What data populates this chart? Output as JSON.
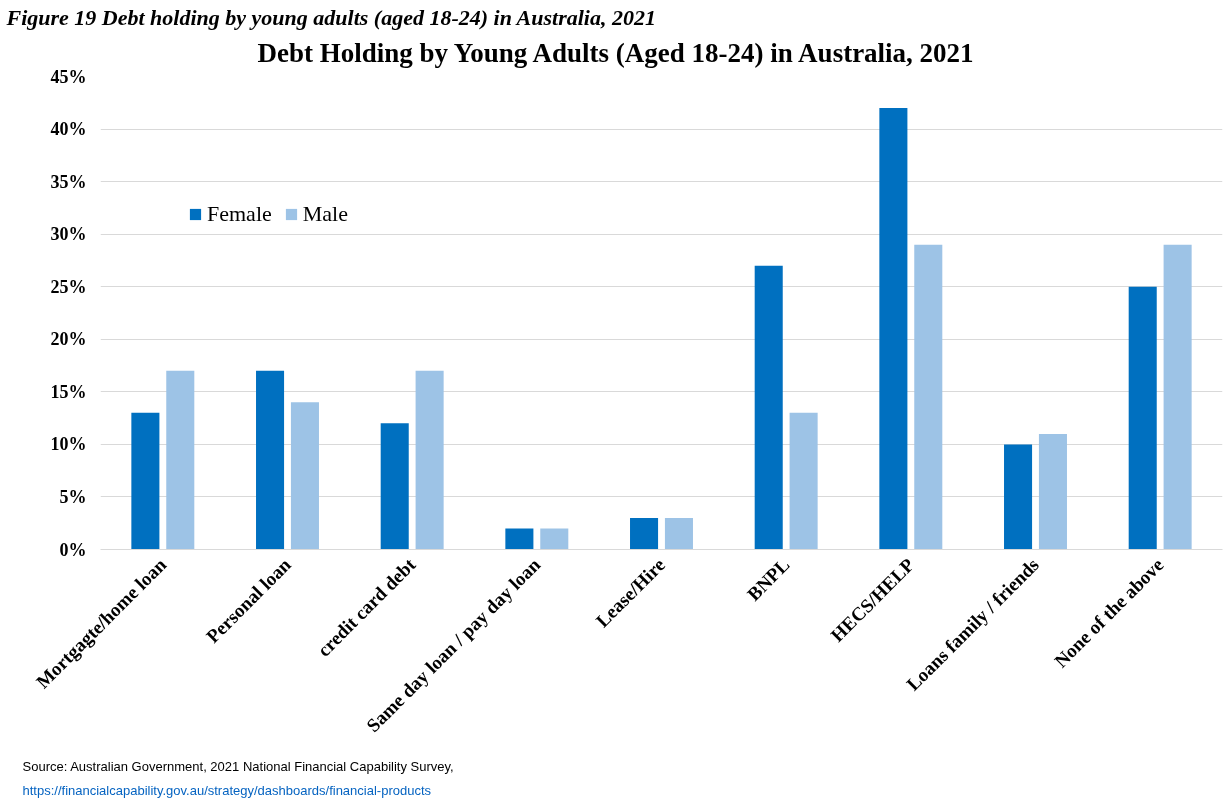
{
  "chart_data": {
    "type": "bar",
    "title": "Debt Holding by Young Adults (Aged 18-24) in Australia, 2021",
    "categories": [
      "Mortgagte/home loan",
      "Personal loan",
      "credit card debt",
      "Same day loan / pay day loan",
      "Lease/Hire",
      "BNPL",
      "HECS/HELP",
      "Loans family / friends",
      "None of the above"
    ],
    "series": [
      {
        "name": "Female",
        "color": "#0070c0",
        "values": [
          13,
          17,
          12,
          2,
          3,
          27,
          42,
          10,
          25
        ]
      },
      {
        "name": "Male",
        "color": "#9dc3e6",
        "values": [
          17,
          14,
          17,
          2,
          3,
          13,
          29,
          11,
          29
        ]
      }
    ],
    "ylim": [
      0,
      45
    ],
    "yticks": [
      {
        "value": 0,
        "label": "0%"
      },
      {
        "value": 5,
        "label": "5%"
      },
      {
        "value": 10,
        "label": "10%"
      },
      {
        "value": 15,
        "label": "15%"
      },
      {
        "value": 20,
        "label": "20%"
      },
      {
        "value": 25,
        "label": "25%"
      },
      {
        "value": 30,
        "label": "30%"
      },
      {
        "value": 35,
        "label": "35%"
      },
      {
        "value": 40,
        "label": "40%"
      },
      {
        "value": 45,
        "label": "45%"
      }
    ],
    "grid": "y",
    "legend": "top left",
    "annotations": [
      "Figure 19 Debt holding by young adults (aged 18-24) in Australia, 2021",
      "Source: Australian Government, 2021 National Financial Capability Survey,",
      "https://financialcapability.gov.au/strategy/dashboards/financial-products"
    ]
  }
}
